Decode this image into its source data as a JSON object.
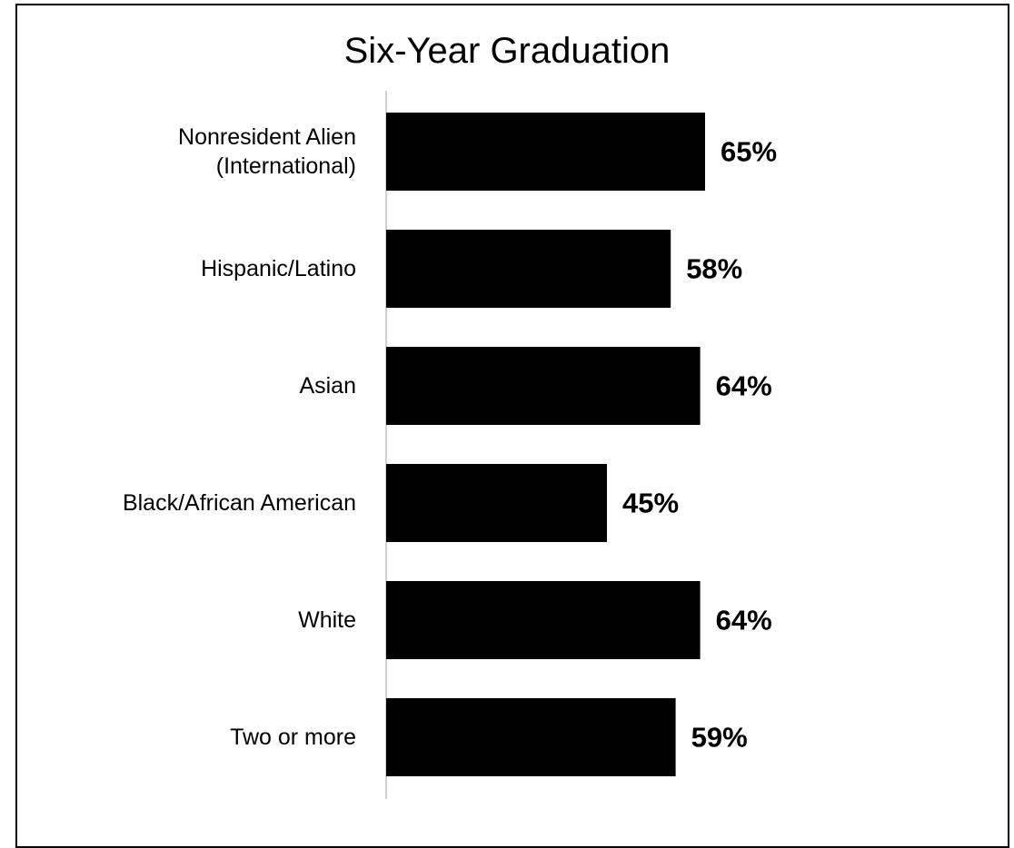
{
  "chart_data": {
    "type": "bar",
    "orientation": "horizontal",
    "title": "Six-Year Graduation",
    "categories": [
      [
        "Nonresident Alien",
        "(International)"
      ],
      [
        "Hispanic/Latino"
      ],
      [
        "Asian"
      ],
      [
        "Black/African American"
      ],
      [
        "White"
      ],
      [
        "Two or more"
      ]
    ],
    "values": [
      65,
      58,
      64,
      45,
      64,
      59
    ],
    "value_labels": [
      "65%",
      "58%",
      "64%",
      "45%",
      "64%",
      "59%"
    ],
    "xlim": [
      0,
      100
    ],
    "grid": false,
    "bar_color": "#000000",
    "axis_color": "#d0d0d0"
  }
}
